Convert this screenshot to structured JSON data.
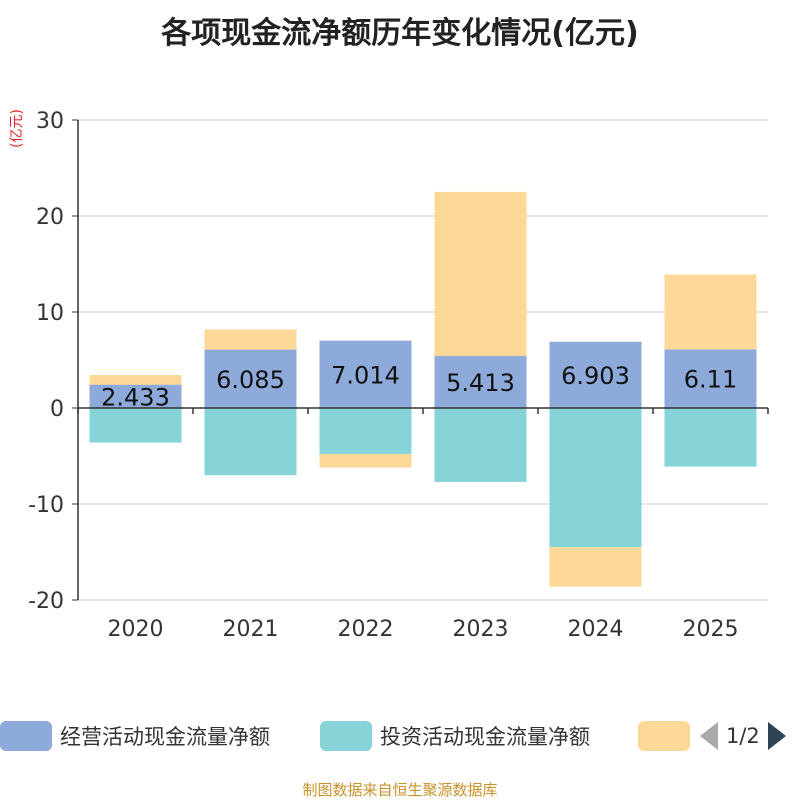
{
  "chart_data": {
    "type": "bar",
    "stacked": true,
    "title": "各项现金流净额历年变化情况(亿元)",
    "unit_label": "(亿元)",
    "categories": [
      "2020",
      "2021",
      "2022",
      "2023",
      "2024",
      "2025"
    ],
    "ylim": [
      -20,
      30
    ],
    "yticks": [
      30,
      20,
      10,
      0,
      -10,
      -20
    ],
    "series": [
      {
        "name": "经营活动现金流量净额",
        "color": "#8eaadb",
        "values": [
          2.433,
          6.085,
          7.014,
          5.413,
          6.903,
          6.11
        ],
        "labels": [
          "2.433",
          "6.085",
          "7.014",
          "5.413",
          "6.903",
          "6.11"
        ]
      },
      {
        "name": "投资活动现金流量净额",
        "color": "#86d4d8",
        "values": [
          -3.6,
          -7.0,
          -4.8,
          -7.7,
          -14.5,
          -6.1
        ]
      },
      {
        "name": "",
        "color": "#fdd898",
        "values": [
          1.0,
          2.1,
          -1.4,
          17.1,
          -4.1,
          7.8
        ]
      }
    ],
    "legend_position": "bottom"
  },
  "legend": {
    "page": "1/2"
  },
  "source": "制图数据来自恒生聚源数据库"
}
